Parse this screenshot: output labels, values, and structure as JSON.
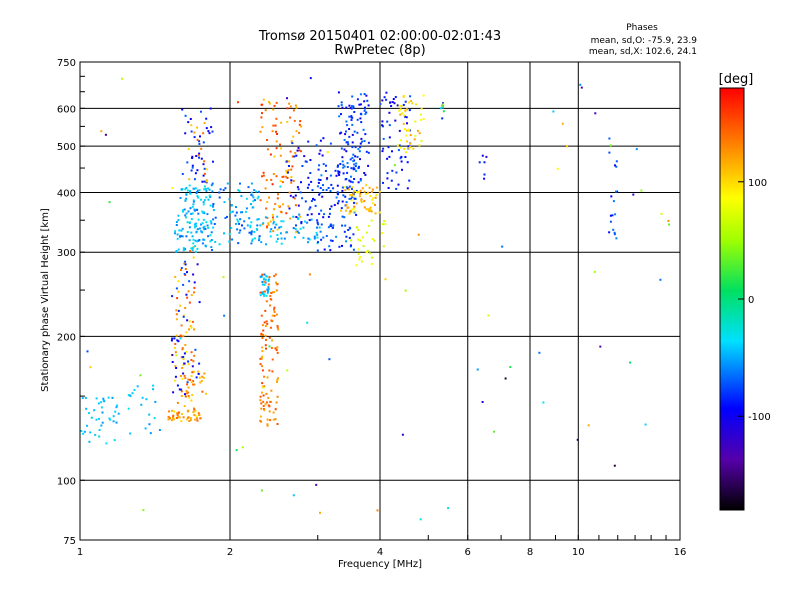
{
  "chart_data": {
    "type": "scatter",
    "title": "Tromsø 20150401 02:00:00-02:01:43",
    "subtitle": "RwPretec (8p)",
    "xlabel": "Frequency [MHz]",
    "ylabel": "Stationary phase Virtual Height [km]",
    "x_scale": "log",
    "y_scale": "log",
    "xlim": [
      1,
      16
    ],
    "ylim": [
      75,
      750
    ],
    "x_ticks": [
      "1",
      "2",
      "4",
      "6",
      "8",
      "10",
      "16"
    ],
    "y_ticks": [
      "75",
      "100",
      "200",
      "300",
      "400",
      "500",
      "600",
      "750"
    ],
    "grid": true,
    "phase_info": {
      "header": "Phases",
      "line_o": "mean, sd,O: -75.9, 23.9",
      "line_x": "mean, sd,X: 102.6, 24.1"
    },
    "colorbar": {
      "unit_label": "[deg]",
      "range": [
        -180,
        180
      ],
      "ticks": [
        "100",
        "0",
        "-100"
      ]
    },
    "clusters": [
      {
        "f": [
          1.0,
          1.2
        ],
        "h": [
          118,
          150
        ],
        "phase": [
          -60,
          -35
        ],
        "n": 40
      },
      {
        "f": [
          1.25,
          1.45
        ],
        "h": [
          125,
          160
        ],
        "phase": [
          -60,
          -30
        ],
        "n": 20
      },
      {
        "f": [
          1.5,
          1.75
        ],
        "h": [
          133,
          140
        ],
        "phase": [
          100,
          150
        ],
        "n": 45
      },
      {
        "f": [
          1.55,
          1.7
        ],
        "h": [
          140,
          310
        ],
        "phase": [
          100,
          160
        ],
        "n": 70
      },
      {
        "f": [
          1.6,
          1.8
        ],
        "h": [
          150,
          170
        ],
        "phase": [
          110,
          150
        ],
        "n": 25
      },
      {
        "f": [
          1.5,
          1.75
        ],
        "h": [
          150,
          290
        ],
        "phase": [
          -110,
          -70
        ],
        "n": 40
      },
      {
        "f": [
          1.55,
          1.85
        ],
        "h": [
          300,
          420
        ],
        "phase": [
          -70,
          -30
        ],
        "n": 150
      },
      {
        "f": [
          1.6,
          1.85
        ],
        "h": [
          420,
          600
        ],
        "phase": [
          -110,
          -70
        ],
        "n": 40
      },
      {
        "f": [
          1.65,
          1.8
        ],
        "h": [
          420,
          560
        ],
        "phase": [
          100,
          150
        ],
        "n": 15
      },
      {
        "f": [
          1.85,
          2.3
        ],
        "h": [
          310,
          420
        ],
        "phase": [
          -80,
          -30
        ],
        "n": 80
      },
      {
        "f": [
          2.3,
          2.4
        ],
        "h": [
          240,
          270
        ],
        "phase": [
          -70,
          -30
        ],
        "n": 30
      },
      {
        "f": [
          2.3,
          2.5
        ],
        "h": [
          130,
          270
        ],
        "phase": [
          120,
          160
        ],
        "n": 110
      },
      {
        "f": [
          2.3,
          2.8
        ],
        "h": [
          330,
          640
        ],
        "phase": [
          110,
          170
        ],
        "n": 110
      },
      {
        "f": [
          2.2,
          3.0
        ],
        "h": [
          310,
          360
        ],
        "phase": [
          -70,
          -35
        ],
        "n": 60
      },
      {
        "f": [
          2.6,
          3.2
        ],
        "h": [
          340,
          520
        ],
        "phase": [
          -110,
          -70
        ],
        "n": 60
      },
      {
        "f": [
          3.0,
          3.6
        ],
        "h": [
          300,
          460
        ],
        "phase": [
          -100,
          -60
        ],
        "n": 110
      },
      {
        "f": [
          3.3,
          3.8
        ],
        "h": [
          420,
          650
        ],
        "phase": [
          -110,
          -60
        ],
        "n": 110
      },
      {
        "f": [
          3.4,
          4.0
        ],
        "h": [
          360,
          420
        ],
        "phase": [
          90,
          140
        ],
        "n": 60
      },
      {
        "f": [
          3.5,
          4.1
        ],
        "h": [
          280,
          350
        ],
        "phase": [
          60,
          100
        ],
        "n": 30
      },
      {
        "f": [
          4.0,
          4.6
        ],
        "h": [
          400,
          650
        ],
        "phase": [
          -110,
          -70
        ],
        "n": 60
      },
      {
        "f": [
          4.3,
          4.9
        ],
        "h": [
          480,
          640
        ],
        "phase": [
          80,
          130
        ],
        "n": 45
      },
      {
        "f": [
          5.3,
          5.4
        ],
        "h": [
          560,
          620
        ],
        "phase": [
          -100,
          120
        ],
        "n": 8
      },
      {
        "f": [
          6.3,
          6.5
        ],
        "h": [
          420,
          480
        ],
        "phase": [
          -100,
          -80
        ],
        "n": 5
      },
      {
        "f": [
          11.5,
          12.0
        ],
        "h": [
          320,
          520
        ],
        "phase": [
          -100,
          -60
        ],
        "n": 18
      },
      {
        "f": [
          1.0,
          16.0
        ],
        "h": [
          80,
          700
        ],
        "phase": [
          -170,
          170
        ],
        "n": 80
      }
    ]
  }
}
